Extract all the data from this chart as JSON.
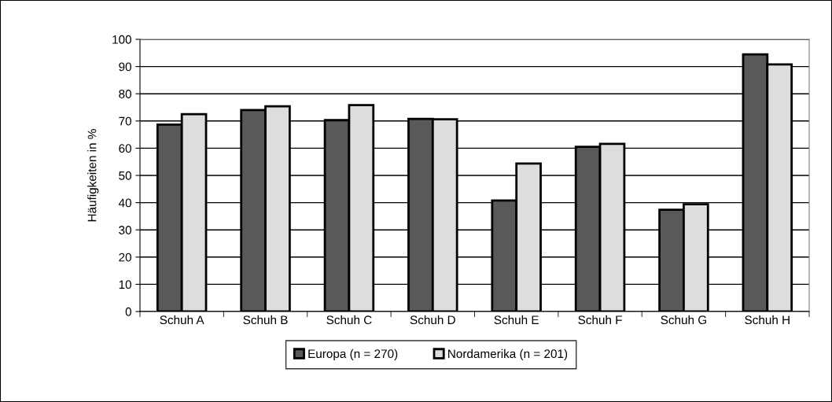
{
  "chart_data": {
    "type": "bar",
    "ylabel": "Häufigkeiten in %",
    "categories": [
      "Schuh A",
      "Schuh B",
      "Schuh C",
      "Schuh D",
      "Schuh E",
      "Schuh F",
      "Schuh G",
      "Schuh H"
    ],
    "series": [
      {
        "name": "Europa (n = 270)",
        "color": "#595959",
        "values": [
          68.7,
          74.0,
          70.3,
          70.8,
          40.8,
          60.5,
          37.4,
          94.5
        ]
      },
      {
        "name": "Nordamerika (n = 201)",
        "color": "#dddddd",
        "values": [
          72.5,
          75.4,
          75.8,
          70.6,
          54.4,
          61.6,
          39.4,
          90.8
        ]
      }
    ],
    "ylim": [
      0,
      100
    ],
    "yticks": [
      0,
      10,
      20,
      30,
      40,
      50,
      60,
      70,
      80,
      90,
      100
    ],
    "grid": "y",
    "legend": "bottom"
  }
}
